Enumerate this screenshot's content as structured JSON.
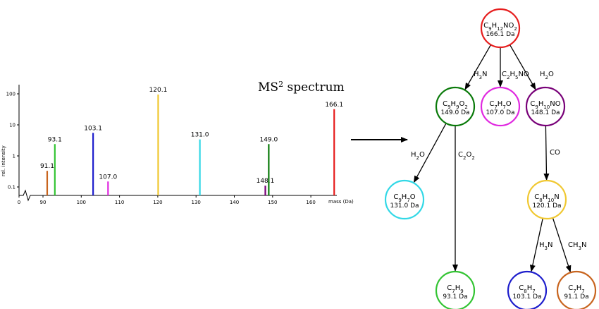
{
  "spectrum": {
    "title": "MS",
    "title_sup": "2",
    "title_rest": " spectrum",
    "ylabel": "rel. intensity",
    "xlabel": "mass (Da)",
    "y_scale": "log",
    "y_ticks": [
      {
        "value": 100,
        "label": "100"
      },
      {
        "value": 10,
        "label": "10"
      },
      {
        "value": 1,
        "label": "1"
      },
      {
        "value": 0.1,
        "label": "0.1"
      }
    ],
    "x_ticks": [
      {
        "value": 0,
        "label": "0"
      },
      {
        "value": 90,
        "label": "90"
      },
      {
        "value": 100,
        "label": "100"
      },
      {
        "value": 110,
        "label": "110"
      },
      {
        "value": 120,
        "label": "120"
      },
      {
        "value": 130,
        "label": "130"
      },
      {
        "value": 140,
        "label": "140"
      },
      {
        "value": 150,
        "label": "150"
      },
      {
        "value": 160,
        "label": "160"
      }
    ],
    "peaks": [
      {
        "mass": 91.1,
        "label": "91.1",
        "intensity": 0.33,
        "color": "#c8641e"
      },
      {
        "mass": 93.1,
        "label": "93.1",
        "intensity": 2.4,
        "color": "#33c433"
      },
      {
        "mass": 103.1,
        "label": "103.1",
        "intensity": 5.5,
        "color": "#1e1ecc"
      },
      {
        "mass": 107.0,
        "label": "107.0",
        "intensity": 0.15,
        "color": "#e028e0"
      },
      {
        "mass": 120.1,
        "label": "120.1",
        "intensity": 95,
        "color": "#f0c832"
      },
      {
        "mass": 131.0,
        "label": "131.0",
        "intensity": 3.4,
        "color": "#32d8e6"
      },
      {
        "mass": 148.1,
        "label": "148.1",
        "intensity": 0.11,
        "color": "#780078"
      },
      {
        "mass": 149.0,
        "label": "149.0",
        "intensity": 2.4,
        "color": "#0a7a0a"
      },
      {
        "mass": 166.1,
        "label": "166.1",
        "intensity": 32,
        "color": "#e61e1e"
      }
    ]
  },
  "tree": {
    "nodes": [
      {
        "id": "n166",
        "formula": [
          [
            "C",
            ""
          ],
          [
            "9",
            "sub"
          ],
          [
            "H",
            ""
          ],
          [
            "12",
            "sub"
          ],
          [
            "NO",
            ""
          ],
          [
            "2",
            "sub"
          ]
        ],
        "mass": "166.1 Da",
        "color": "#e61e1e"
      },
      {
        "id": "n149",
        "formula": [
          [
            "C",
            ""
          ],
          [
            "9",
            "sub"
          ],
          [
            "H",
            ""
          ],
          [
            "9",
            "sub"
          ],
          [
            "O",
            ""
          ],
          [
            "2",
            "sub"
          ]
        ],
        "mass": "149.0 Da",
        "color": "#0a7a0a"
      },
      {
        "id": "n107",
        "formula": [
          [
            "C",
            ""
          ],
          [
            "7",
            "sub"
          ],
          [
            "H",
            ""
          ],
          [
            "7",
            "sub"
          ],
          [
            "O",
            ""
          ]
        ],
        "mass": "107.0 Da",
        "color": "#e028e0"
      },
      {
        "id": "n148",
        "formula": [
          [
            "C",
            ""
          ],
          [
            "9",
            "sub"
          ],
          [
            "H",
            ""
          ],
          [
            "10",
            "sub"
          ],
          [
            "NO",
            ""
          ]
        ],
        "mass": "148.1 Da",
        "color": "#780078"
      },
      {
        "id": "n131",
        "formula": [
          [
            "C",
            ""
          ],
          [
            "9",
            "sub"
          ],
          [
            "H",
            ""
          ],
          [
            "7",
            "sub"
          ],
          [
            "O",
            ""
          ]
        ],
        "mass": "131.0 Da",
        "color": "#32d8e6"
      },
      {
        "id": "n120",
        "formula": [
          [
            "C",
            ""
          ],
          [
            "8",
            "sub"
          ],
          [
            "H",
            ""
          ],
          [
            "10",
            "sub"
          ],
          [
            "N",
            ""
          ]
        ],
        "mass": "120.1 Da",
        "color": "#f0c832"
      },
      {
        "id": "n93",
        "formula": [
          [
            "C",
            ""
          ],
          [
            "7",
            "sub"
          ],
          [
            "H",
            ""
          ],
          [
            "9",
            "sub"
          ]
        ],
        "mass": "93.1 Da",
        "color": "#33c433"
      },
      {
        "id": "n103",
        "formula": [
          [
            "C",
            ""
          ],
          [
            "8",
            "sub"
          ],
          [
            "H",
            ""
          ],
          [
            "7",
            "sub"
          ]
        ],
        "mass": "103.1 Da",
        "color": "#1e1ecc"
      },
      {
        "id": "n91",
        "formula": [
          [
            "C",
            ""
          ],
          [
            "7",
            "sub"
          ],
          [
            "H",
            ""
          ],
          [
            "7",
            "sub"
          ]
        ],
        "mass": "91.1 Da",
        "color": "#c8641e"
      }
    ],
    "edges": [
      {
        "from": "n166",
        "to": "n149",
        "loss": [
          [
            "H",
            ""
          ],
          [
            "3",
            "sub"
          ],
          [
            "N",
            ""
          ]
        ]
      },
      {
        "from": "n166",
        "to": "n107",
        "loss": [
          [
            "C",
            ""
          ],
          [
            "2",
            "sub"
          ],
          [
            "H",
            ""
          ],
          [
            "5",
            "sub"
          ],
          [
            "NO",
            ""
          ]
        ]
      },
      {
        "from": "n166",
        "to": "n148",
        "loss": [
          [
            "H",
            ""
          ],
          [
            "2",
            "sub"
          ],
          [
            "O",
            ""
          ]
        ]
      },
      {
        "from": "n149",
        "to": "n131",
        "loss": [
          [
            "H",
            ""
          ],
          [
            "2",
            "sub"
          ],
          [
            "O",
            ""
          ]
        ]
      },
      {
        "from": "n149",
        "to": "n93",
        "loss": [
          [
            "C",
            ""
          ],
          [
            "2",
            "sub"
          ],
          [
            "O",
            ""
          ],
          [
            "2",
            "sub"
          ]
        ]
      },
      {
        "from": "n148",
        "to": "n120",
        "loss": [
          [
            "CO",
            ""
          ]
        ]
      },
      {
        "from": "n120",
        "to": "n103",
        "loss": [
          [
            "H",
            ""
          ],
          [
            "3",
            "sub"
          ],
          [
            "N",
            ""
          ]
        ]
      },
      {
        "from": "n120",
        "to": "n91",
        "loss": [
          [
            "CH",
            ""
          ],
          [
            "3",
            "sub"
          ],
          [
            "N",
            ""
          ]
        ]
      }
    ]
  }
}
